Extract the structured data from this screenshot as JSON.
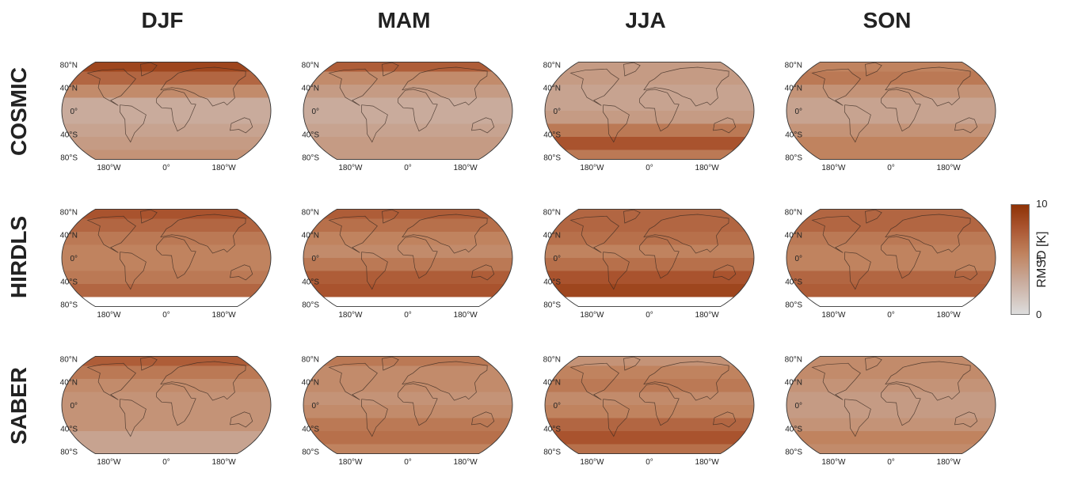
{
  "columns": [
    "DJF",
    "MAM",
    "JJA",
    "SON"
  ],
  "rows": [
    "COSMIC",
    "HIRDLS",
    "SABER"
  ],
  "lat_labels": [
    "80°N",
    "40°N",
    "0°",
    "40°S",
    "80°S"
  ],
  "lon_labels": [
    "180°W",
    "0°",
    "180°W"
  ],
  "colorbar": {
    "label": "RMSD [K]",
    "max_label": "10",
    "mid_label": "5",
    "min_label": "0",
    "range": [
      0,
      10
    ],
    "colors": [
      "#dddddd",
      "#c9ab9c",
      "#c0835f",
      "#a9532e",
      "#8e3206"
    ]
  },
  "map_type": "Robinson projection world maps of seasonal RMSD",
  "panels": [
    [
      {
        "bands": [
          8.5,
          6.5,
          4.5,
          2.5,
          2.5,
          3.0,
          3.5,
          4.0
        ],
        "hirdls_gap": false
      },
      {
        "bands": [
          7.0,
          4.5,
          3.5,
          2.5,
          2.5,
          3.0,
          3.5,
          3.5
        ],
        "hirdls_gap": false
      },
      {
        "bands": [
          3.5,
          3.5,
          3.0,
          3.0,
          3.5,
          5.5,
          7.5,
          5.5
        ],
        "hirdls_gap": false
      },
      {
        "bands": [
          5.0,
          5.5,
          4.0,
          3.0,
          3.0,
          4.0,
          5.0,
          5.0
        ],
        "hirdls_gap": false
      }
    ],
    [
      {
        "bands": [
          7.5,
          6.5,
          5.5,
          5.0,
          5.0,
          5.5,
          6.5,
          0
        ],
        "hirdls_gap": true
      },
      {
        "bands": [
          7.0,
          6.0,
          5.0,
          4.5,
          5.5,
          7.0,
          7.5,
          0
        ],
        "hirdls_gap": true
      },
      {
        "bands": [
          6.5,
          6.5,
          6.0,
          5.0,
          6.0,
          7.5,
          8.5,
          0
        ],
        "hirdls_gap": true
      },
      {
        "bands": [
          6.5,
          6.5,
          5.5,
          5.0,
          5.0,
          6.5,
          7.0,
          0
        ],
        "hirdls_gap": true
      }
    ],
    [
      {
        "bands": [
          7.0,
          5.5,
          4.5,
          4.0,
          4.0,
          4.0,
          3.0,
          3.0
        ],
        "hirdls_gap": false
      },
      {
        "bands": [
          5.5,
          4.5,
          4.5,
          4.0,
          4.5,
          5.5,
          6.0,
          5.0
        ],
        "hirdls_gap": false
      },
      {
        "bands": [
          4.0,
          5.0,
          5.5,
          4.5,
          5.0,
          6.5,
          7.5,
          6.0
        ],
        "hirdls_gap": false
      },
      {
        "bands": [
          4.5,
          4.5,
          4.0,
          3.5,
          3.5,
          4.0,
          5.0,
          4.5
        ],
        "hirdls_gap": false
      }
    ]
  ]
}
